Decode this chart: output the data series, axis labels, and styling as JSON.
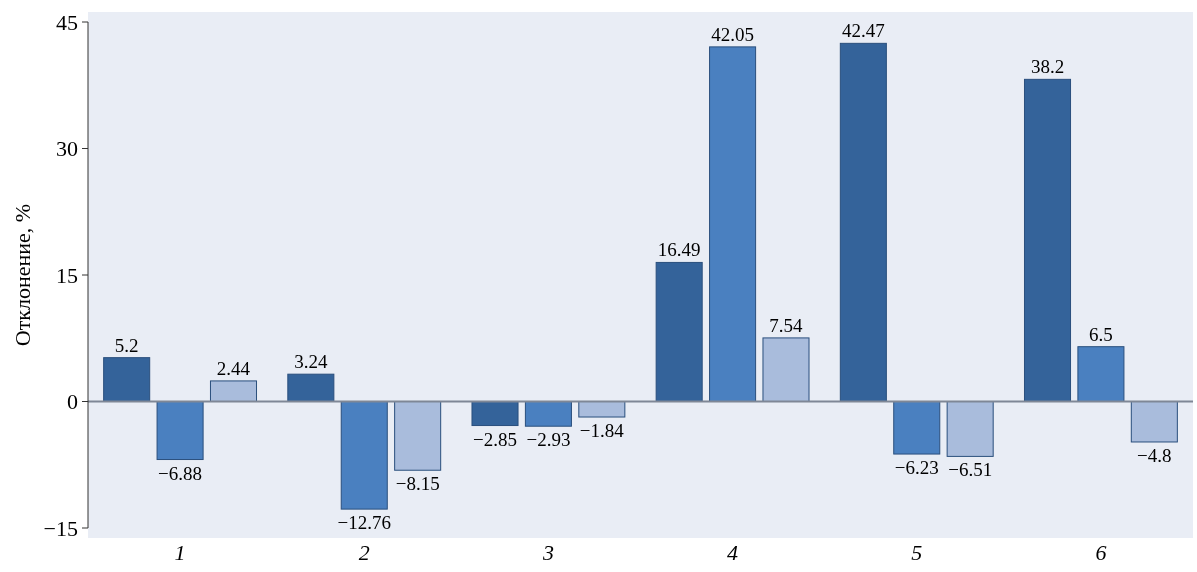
{
  "chart_data": {
    "type": "bar",
    "ylabel": "Отклонение, %",
    "categories": [
      "1",
      "2",
      "3",
      "4",
      "5",
      "6"
    ],
    "series": [
      {
        "color": "#34639a",
        "values": [
          5.2,
          3.24,
          -2.85,
          16.49,
          42.47,
          38.2
        ]
      },
      {
        "color": "#4a80c0",
        "values": [
          -6.88,
          -12.76,
          -2.93,
          42.05,
          -6.23,
          6.5
        ]
      },
      {
        "color": "#a9bcdc",
        "values": [
          2.44,
          -8.15,
          -1.84,
          7.54,
          -6.51,
          -4.8
        ]
      }
    ],
    "ylim": [
      -15,
      45
    ],
    "yticks": [
      -15,
      0,
      15,
      30,
      45
    ],
    "data_labels": true
  }
}
